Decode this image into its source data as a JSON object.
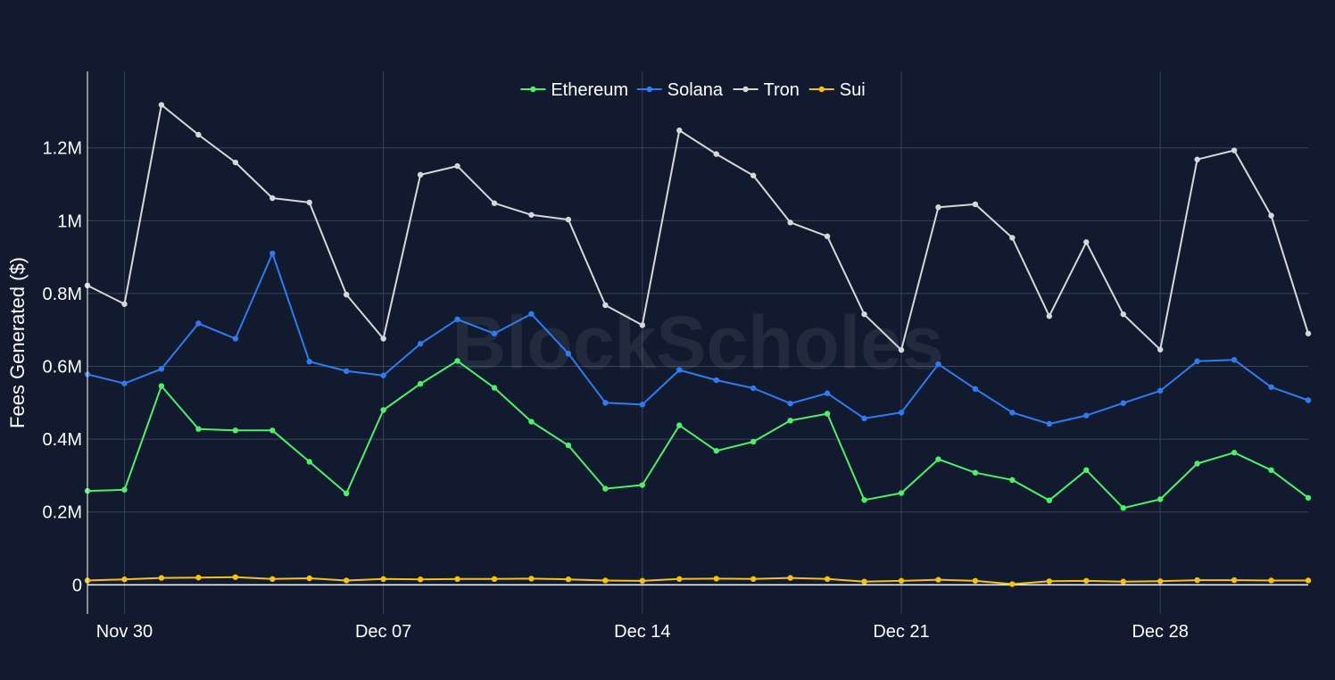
{
  "chart_data": {
    "type": "line",
    "title": "",
    "xlabel": "",
    "ylabel": "Fees Generated ($)",
    "watermark": "BlockScholes",
    "x": [
      "Nov 29",
      "Nov 30",
      "Dec 01",
      "Dec 02",
      "Dec 03",
      "Dec 04",
      "Dec 05",
      "Dec 06",
      "Dec 07",
      "Dec 08",
      "Dec 09",
      "Dec 10",
      "Dec 11",
      "Dec 12",
      "Dec 13",
      "Dec 14",
      "Dec 15",
      "Dec 16",
      "Dec 17",
      "Dec 18",
      "Dec 19",
      "Dec 20",
      "Dec 21",
      "Dec 22",
      "Dec 23",
      "Dec 24",
      "Dec 25",
      "Dec 26",
      "Dec 27",
      "Dec 28",
      "Dec 29",
      "Dec 30",
      "Dec 31",
      "Jan 01"
    ],
    "xticks": [
      {
        "label": "Nov 30",
        "index": 1
      },
      {
        "label": "Dec 07",
        "index": 8
      },
      {
        "label": "Dec 14",
        "index": 15
      },
      {
        "label": "Dec 21",
        "index": 22
      },
      {
        "label": "Dec 28",
        "index": 29
      }
    ],
    "ylim": [
      -80000,
      1410000
    ],
    "yticks": [
      {
        "value": 0,
        "label": "0"
      },
      {
        "value": 200000,
        "label": "0.2M"
      },
      {
        "value": 400000,
        "label": "0.4M"
      },
      {
        "value": 600000,
        "label": "0.6M"
      },
      {
        "value": 800000,
        "label": "0.8M"
      },
      {
        "value": 1000000,
        "label": "1M"
      },
      {
        "value": 1200000,
        "label": "1.2M"
      }
    ],
    "grid": true,
    "legend_position": "top-center",
    "series": [
      {
        "name": "Ethereum",
        "color": "#4ef06a",
        "values": [
          258000,
          261000,
          546000,
          428000,
          424000,
          424000,
          338000,
          251000,
          480000,
          552000,
          615000,
          541000,
          448000,
          383000,
          264000,
          274000,
          438000,
          368000,
          393000,
          451000,
          470000,
          233000,
          252000,
          345000,
          308000,
          288000,
          232000,
          315000,
          211000,
          235000,
          333000,
          363000,
          315000,
          239000
        ]
      },
      {
        "name": "Solana",
        "color": "#2f7bf0",
        "values": [
          578000,
          553000,
          593000,
          718000,
          676000,
          910000,
          613000,
          587000,
          575000,
          662000,
          729000,
          690000,
          744000,
          635000,
          500000,
          495000,
          590000,
          562000,
          540000,
          498000,
          526000,
          457000,
          473000,
          606000,
          538000,
          473000,
          442000,
          465000,
          499000,
          533000,
          614000,
          618000,
          543000,
          507000
        ]
      },
      {
        "name": "Tron",
        "color": "#d7d7d7",
        "values": [
          822000,
          771000,
          1318000,
          1236000,
          1160000,
          1062000,
          1050000,
          797000,
          676000,
          1126000,
          1150000,
          1048000,
          1016000,
          1003000,
          768000,
          713000,
          1248000,
          1183000,
          1124000,
          995000,
          957000,
          743000,
          645000,
          1037000,
          1045000,
          953000,
          738000,
          941000,
          743000,
          646000,
          1168000,
          1193000,
          1014000,
          690000
        ]
      },
      {
        "name": "Sui",
        "color": "#f5c211",
        "values": [
          12000,
          15000,
          19000,
          20000,
          21000,
          16000,
          18000,
          12000,
          16000,
          15000,
          16000,
          16000,
          17000,
          15000,
          12000,
          11000,
          16000,
          17000,
          16000,
          19000,
          16000,
          9000,
          11000,
          14000,
          11000,
          2000,
          10000,
          11000,
          9000,
          10000,
          13000,
          13000,
          12000,
          12000
        ]
      }
    ]
  }
}
